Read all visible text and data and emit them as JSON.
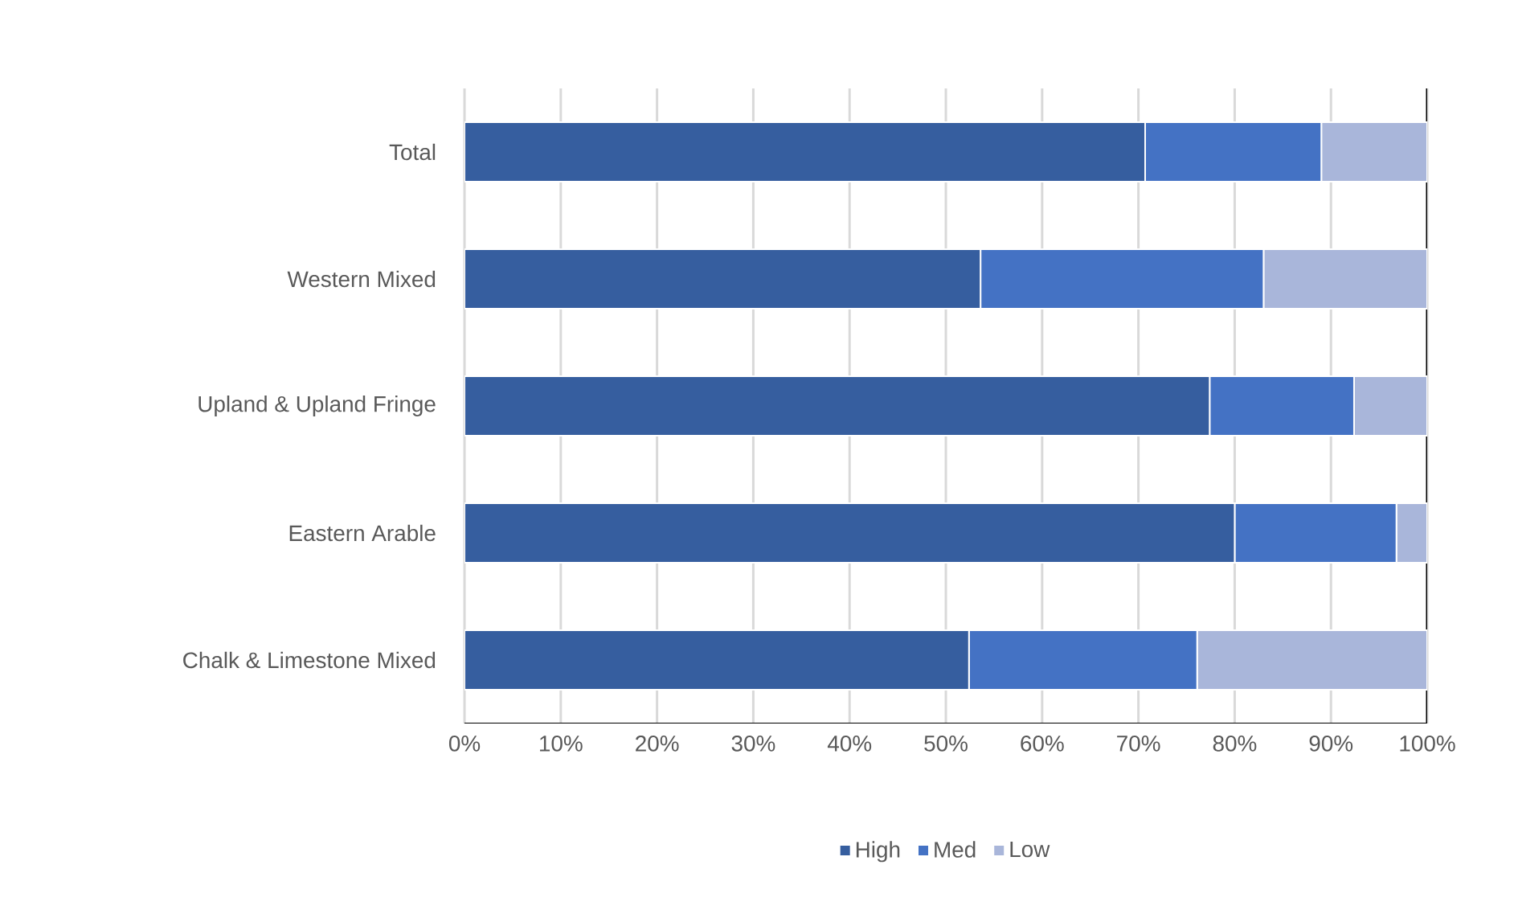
{
  "chart_data": {
    "type": "bar",
    "orientation": "horizontal",
    "stacked": true,
    "categories": [
      "Total",
      "Western Mixed",
      "Upland & Upland Fringe",
      "Eastern Arable",
      "Chalk & Limestone Mixed"
    ],
    "series": [
      {
        "name": "High",
        "color": "#365e9f",
        "values": [
          70.7,
          53.6,
          77.4,
          80.0,
          52.4
        ]
      },
      {
        "name": "Med",
        "color": "#4472c4",
        "values": [
          18.3,
          29.4,
          15.0,
          16.8,
          23.7
        ]
      },
      {
        "name": "Low",
        "color": "#a9b6da",
        "values": [
          11.0,
          17.0,
          7.6,
          3.2,
          23.9
        ]
      }
    ],
    "xlim": [
      0,
      100
    ],
    "xticks": [
      {
        "value": 0,
        "label": "0%"
      },
      {
        "value": 10,
        "label": "10%"
      },
      {
        "value": 20,
        "label": "20%"
      },
      {
        "value": 30,
        "label": "30%"
      },
      {
        "value": 40,
        "label": "40%"
      },
      {
        "value": 50,
        "label": "50%"
      },
      {
        "value": 60,
        "label": "60%"
      },
      {
        "value": 70,
        "label": "70%"
      },
      {
        "value": 80,
        "label": "80%"
      },
      {
        "value": 90,
        "label": "90%"
      },
      {
        "value": 100,
        "label": "100%"
      }
    ],
    "grid": "x",
    "legend": "bottom"
  }
}
